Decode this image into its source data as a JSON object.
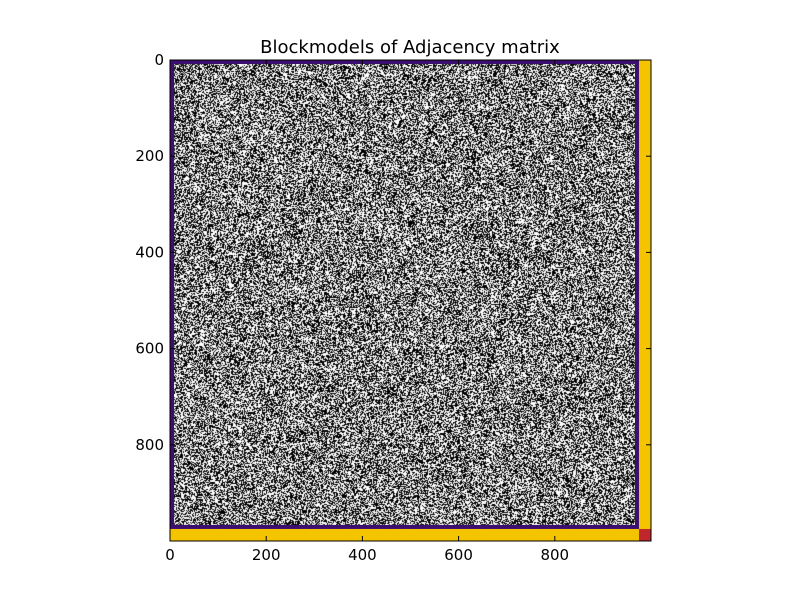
{
  "chart_data": {
    "type": "heatmap",
    "title": "Blockmodels of Adjacency matrix",
    "xlabel": "",
    "ylabel": "",
    "matrix_size": 1000,
    "xlim": [
      0,
      1000
    ],
    "ylim": [
      1000,
      0
    ],
    "x_ticks": [
      0,
      200,
      400,
      600,
      800
    ],
    "y_ticks": [
      0,
      200,
      400,
      600,
      800
    ],
    "grid": false,
    "legend": "none",
    "edge_density": 0.5,
    "blocks": [
      {
        "rows": [
          0,
          975
        ],
        "cols": [
          0,
          975
        ],
        "outline_color": "#3b0f70"
      },
      {
        "rows": [
          0,
          975
        ],
        "cols": [
          975,
          1000
        ],
        "fill_color": "#f5c400"
      },
      {
        "rows": [
          975,
          1000
        ],
        "cols": [
          0,
          975
        ],
        "fill_color": "#f5c400"
      },
      {
        "rows": [
          975,
          1000
        ],
        "cols": [
          975,
          1000
        ],
        "fill_color": "#c0272d"
      }
    ],
    "colors": {
      "edge": "#000000",
      "no_edge": "#ffffff",
      "block_outline": "#3b0f70",
      "off_block": "#f5c400",
      "corner_block": "#c0272d"
    }
  }
}
